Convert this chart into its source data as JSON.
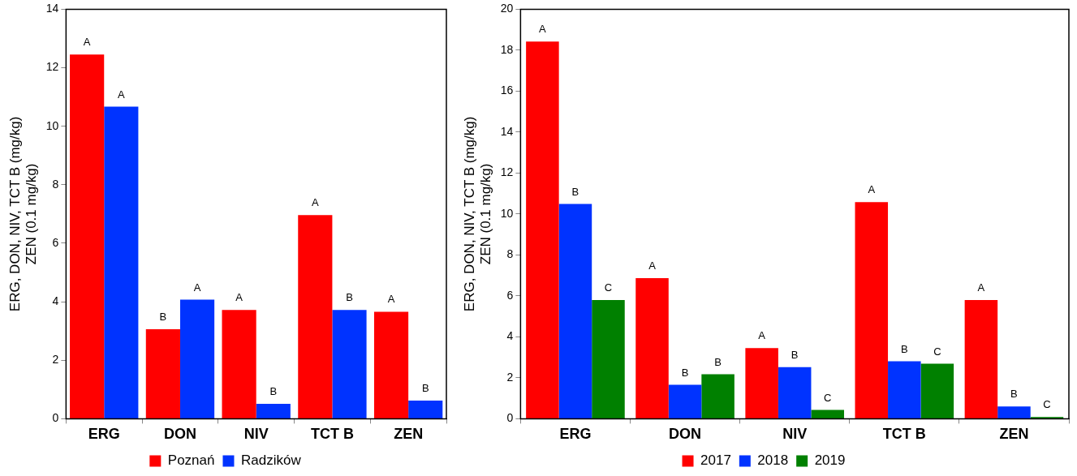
{
  "chart_data": [
    {
      "type": "bar",
      "ylabel": "ERG, DON, NIV, TCT B (mg/kg)\nZEN (0.1 mg/kg)",
      "categories": [
        "ERG",
        "DON",
        "NIV",
        "TCT B",
        "ZEN"
      ],
      "ylim": [
        0,
        14
      ],
      "yticks": [
        0,
        2,
        4,
        6,
        8,
        10,
        12,
        14
      ],
      "grid": false,
      "legend": "bottom",
      "series": [
        {
          "name": "Poznań",
          "color": "#ff0000",
          "values": [
            12.45,
            3.06,
            3.72,
            6.96,
            3.66
          ],
          "value_labels": [
            "A",
            "B",
            "A",
            "A",
            "A"
          ]
        },
        {
          "name": "Radzików",
          "color": "#0033ff",
          "values": [
            10.67,
            4.07,
            0.51,
            3.72,
            0.62
          ],
          "value_labels": [
            "A",
            "A",
            "B",
            "B",
            "B"
          ]
        }
      ]
    },
    {
      "type": "bar",
      "ylabel": "ERG, DON, NIV, TCT B (mg/kg)\nZEN (0.1 mg/kg)",
      "categories": [
        "ERG",
        "DON",
        "NIV",
        "TCT B",
        "ZEN"
      ],
      "ylim": [
        0,
        20
      ],
      "yticks": [
        0,
        2,
        4,
        6,
        8,
        10,
        12,
        14,
        16,
        18,
        20
      ],
      "grid": false,
      "legend": "bottom",
      "series": [
        {
          "name": "2017",
          "color": "#ff0000",
          "values": [
            18.42,
            6.87,
            3.45,
            10.58,
            5.8
          ],
          "value_labels": [
            "A",
            "A",
            "A",
            "A",
            "A"
          ]
        },
        {
          "name": "2018",
          "color": "#0033ff",
          "values": [
            10.49,
            1.66,
            2.52,
            2.81,
            0.6
          ],
          "value_labels": [
            "B",
            "B",
            "B",
            "B",
            "B"
          ]
        },
        {
          "name": "2019",
          "color": "#008000",
          "values": [
            5.8,
            2.17,
            0.43,
            2.69,
            0.09
          ],
          "value_labels": [
            "C",
            "B",
            "C",
            "C",
            "C"
          ]
        }
      ]
    }
  ]
}
